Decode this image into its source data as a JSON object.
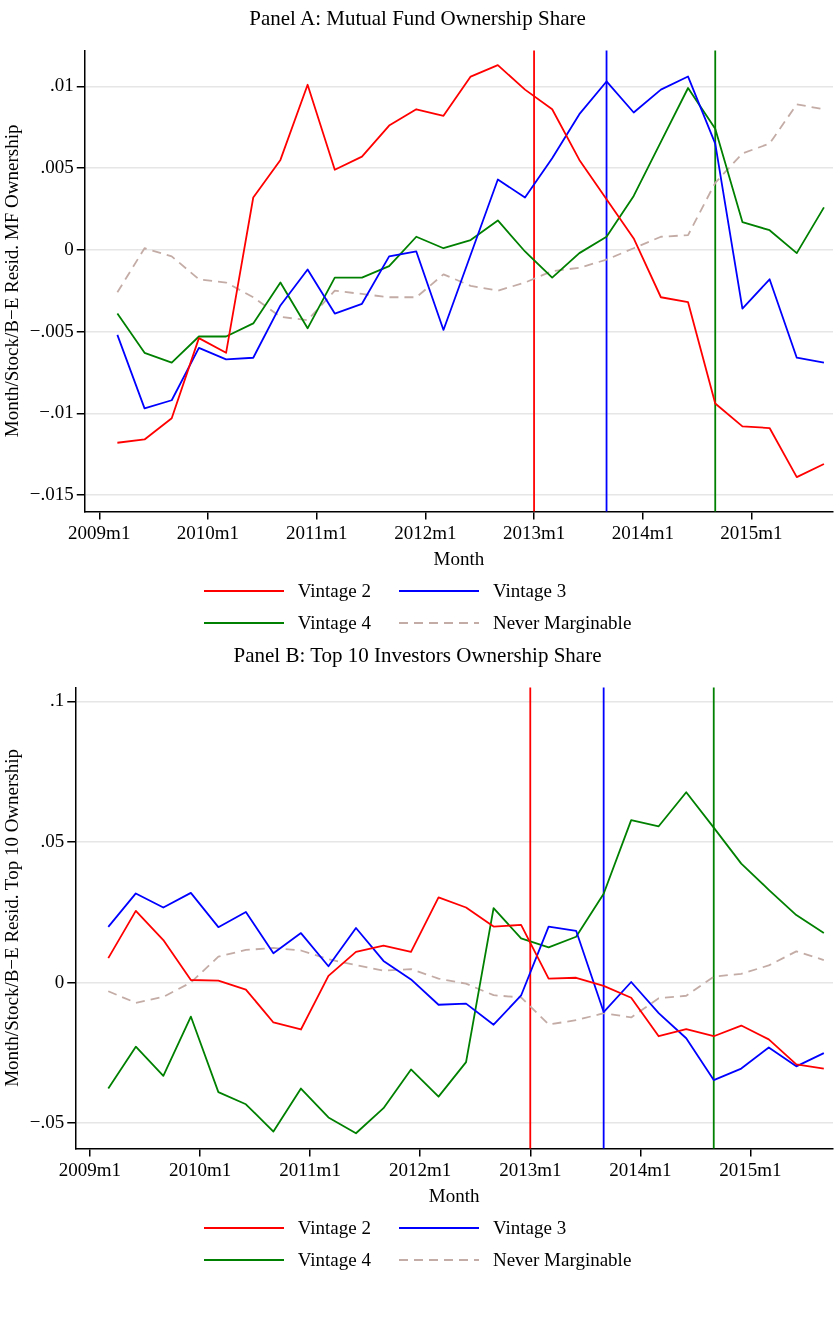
{
  "chart_data": [
    {
      "type": "line",
      "title": "Panel A: Mutual Fund Ownership Share",
      "xlabel": "Month",
      "ylabel": "Month/Stock/B−E Resid. MF Ownership",
      "x": [
        "2009-03",
        "2009-06",
        "2009-09",
        "2009-12",
        "2010-03",
        "2010-06",
        "2010-09",
        "2010-12",
        "2011-03",
        "2011-06",
        "2011-09",
        "2011-12",
        "2012-03",
        "2012-06",
        "2012-09",
        "2012-12",
        "2013-03",
        "2013-06",
        "2013-09",
        "2013-12",
        "2014-03",
        "2014-06",
        "2014-09",
        "2014-12",
        "2015-03",
        "2015-06",
        "2015-09"
      ],
      "series": [
        {
          "name": "Vintage 2",
          "color": "#ff0000",
          "values": [
            -0.0118,
            -0.0116,
            -0.0103,
            -0.0054,
            -0.0063,
            0.0032,
            0.0055,
            0.0101,
            0.0049,
            0.0057,
            0.0076,
            0.0086,
            0.0082,
            0.0106,
            0.0113,
            0.0098,
            0.0086,
            0.0055,
            0.0031,
            0.0007,
            -0.0029,
            -0.0032,
            -0.0094,
            -0.0108,
            -0.0109,
            -0.0139,
            -0.0131
          ]
        },
        {
          "name": "Vintage 3",
          "color": "#0000ff",
          "values": [
            -0.0052,
            -0.0097,
            -0.0092,
            -0.006,
            -0.0067,
            -0.0066,
            -0.0034,
            -0.0012,
            -0.0039,
            -0.0033,
            -0.0004,
            -0.0001,
            -0.0049,
            -0.0003,
            0.0043,
            0.0032,
            0.0056,
            0.0083,
            0.0103,
            0.0084,
            0.0098,
            0.0106,
            0.0065,
            -0.0036,
            -0.0018,
            -0.0066,
            -0.0069
          ]
        },
        {
          "name": "Vintage 4",
          "color": "#008000",
          "values": [
            -0.0039,
            -0.0063,
            -0.0069,
            -0.0053,
            -0.0053,
            -0.0045,
            -0.002,
            -0.0048,
            -0.0017,
            -0.0017,
            -0.001,
            0.0008,
            0.0001,
            0.0006,
            0.0018,
            -0.0001,
            -0.0017,
            -0.0002,
            0.0008,
            0.0033,
            0.0066,
            0.0099,
            0.0074,
            0.0017,
            0.0012,
            -0.0002,
            0.0026
          ]
        },
        {
          "name": "Never Marginable",
          "color": "#c4aca6",
          "line_style": "dashed",
          "values": [
            -0.0026,
            0.0001,
            -0.0004,
            -0.0018,
            -0.002,
            -0.0029,
            -0.0041,
            -0.0043,
            -0.0025,
            -0.0027,
            -0.0029,
            -0.0029,
            -0.0015,
            -0.0022,
            -0.0025,
            -0.002,
            -0.0013,
            -0.0011,
            -0.0006,
            0.0001,
            0.0008,
            0.0009,
            0.0041,
            0.0059,
            0.0065,
            0.0089,
            0.0086
          ]
        }
      ],
      "xlim": [
        "2008-11-13",
        "2015-10-01"
      ],
      "xticks": [
        {
          "value": "2009-01",
          "label": "2009m1"
        },
        {
          "value": "2010-01",
          "label": "2010m1"
        },
        {
          "value": "2011-01",
          "label": "2011m1"
        },
        {
          "value": "2012-01",
          "label": "2012m1"
        },
        {
          "value": "2013-01",
          "label": "2013m1"
        },
        {
          "value": "2014-01",
          "label": "2014m1"
        },
        {
          "value": "2015-01",
          "label": "2015m1"
        }
      ],
      "ylim": [
        -0.016,
        0.0122
      ],
      "yticks": [
        {
          "value": -0.015,
          "label": "−.015"
        },
        {
          "value": -0.01,
          "label": "−.01"
        },
        {
          "value": -0.005,
          "label": "−.005"
        },
        {
          "value": 0,
          "label": "0"
        },
        {
          "value": 0.005,
          "label": ".005"
        },
        {
          "value": 0.01,
          "label": ".01"
        }
      ],
      "ref_lines": [
        {
          "axis": "x",
          "value": "2013-01",
          "color": "#ff0000"
        },
        {
          "axis": "x",
          "value": "2013-09",
          "color": "#0000ff"
        },
        {
          "axis": "x",
          "value": "2014-09",
          "color": "#008000"
        }
      ],
      "grid": "y",
      "legend": "bottom",
      "line_style": "solid",
      "marker": "none"
    },
    {
      "type": "line",
      "title": "Panel B: Top 10 Investors Ownership Share",
      "xlabel": "Month",
      "ylabel": "Month/Stock/B−E Resid. Top 10 Ownership",
      "x": [
        "2009-03",
        "2009-06",
        "2009-09",
        "2009-12",
        "2010-03",
        "2010-06",
        "2010-09",
        "2010-12",
        "2011-03",
        "2011-06",
        "2011-09",
        "2011-12",
        "2012-03",
        "2012-06",
        "2012-09",
        "2012-12",
        "2013-03",
        "2013-06",
        "2013-09",
        "2013-12",
        "2014-03",
        "2014-06",
        "2014-09",
        "2014-12",
        "2015-03",
        "2015-06",
        "2015-09"
      ],
      "series": [
        {
          "name": "Vintage 2",
          "color": "#ff0000",
          "values": [
            0.0087,
            0.0255,
            0.0151,
            0.0009,
            0.0007,
            -0.0025,
            -0.0142,
            -0.0167,
            0.0024,
            0.0109,
            0.0131,
            0.0109,
            0.0303,
            0.0267,
            0.0199,
            0.0205,
            0.0014,
            0.0017,
            -0.0012,
            -0.0054,
            -0.0191,
            -0.0166,
            -0.0191,
            -0.0153,
            -0.0202,
            -0.0291,
            -0.0306
          ]
        },
        {
          "name": "Vintage 3",
          "color": "#0000ff",
          "values": [
            0.0198,
            0.0317,
            0.0267,
            0.0319,
            0.0197,
            0.0251,
            0.0104,
            0.0176,
            0.0058,
            0.0194,
            0.0077,
            0.0011,
            -0.0079,
            -0.0075,
            -0.015,
            -0.0046,
            0.0199,
            0.0184,
            -0.0105,
            0.0002,
            -0.0109,
            -0.0198,
            -0.0347,
            -0.0306,
            -0.0231,
            -0.0298,
            -0.0251
          ]
        },
        {
          "name": "Vintage 4",
          "color": "#008000",
          "values": [
            -0.0377,
            -0.0228,
            -0.0332,
            -0.0121,
            -0.039,
            -0.0433,
            -0.053,
            -0.0377,
            -0.048,
            -0.0536,
            -0.0447,
            -0.0309,
            -0.0406,
            -0.0283,
            0.0265,
            0.0157,
            0.0125,
            0.0163,
            0.0316,
            0.0578,
            0.0556,
            0.0677,
            0.0551,
            0.0423,
            0.033,
            0.024,
            0.0176
          ]
        },
        {
          "name": "Never Marginable",
          "color": "#c4aca6",
          "line_style": "dashed",
          "values": [
            -0.0031,
            -0.0072,
            -0.0051,
            0,
            0.0092,
            0.0116,
            0.0123,
            0.0114,
            0.0083,
            0.0062,
            0.0042,
            0.0048,
            0.0014,
            -0.0004,
            -0.0045,
            -0.0053,
            -0.0149,
            -0.0134,
            -0.0109,
            -0.0124,
            -0.0056,
            -0.0047,
            0.0021,
            0.0031,
            0.0061,
            0.0111,
            0.008
          ]
        }
      ],
      "xlim": [
        "2008-11-13",
        "2015-10-01"
      ],
      "xticks": [
        {
          "value": "2009-01",
          "label": "2009m1"
        },
        {
          "value": "2010-01",
          "label": "2010m1"
        },
        {
          "value": "2011-01",
          "label": "2011m1"
        },
        {
          "value": "2012-01",
          "label": "2012m1"
        },
        {
          "value": "2013-01",
          "label": "2013m1"
        },
        {
          "value": "2014-01",
          "label": "2014m1"
        },
        {
          "value": "2015-01",
          "label": "2015m1"
        }
      ],
      "ylim": [
        -0.059,
        0.105
      ],
      "yticks": [
        {
          "value": -0.05,
          "label": "−.05"
        },
        {
          "value": 0,
          "label": "0"
        },
        {
          "value": 0.05,
          "label": ".05"
        },
        {
          "value": 0.1,
          "label": ".1"
        }
      ],
      "ref_lines": [
        {
          "axis": "x",
          "value": "2013-01",
          "color": "#ff0000"
        },
        {
          "axis": "x",
          "value": "2013-09",
          "color": "#0000ff"
        },
        {
          "axis": "x",
          "value": "2014-09",
          "color": "#008000"
        }
      ],
      "grid": "y",
      "legend": "bottom",
      "line_style": "solid",
      "marker": "none"
    }
  ]
}
